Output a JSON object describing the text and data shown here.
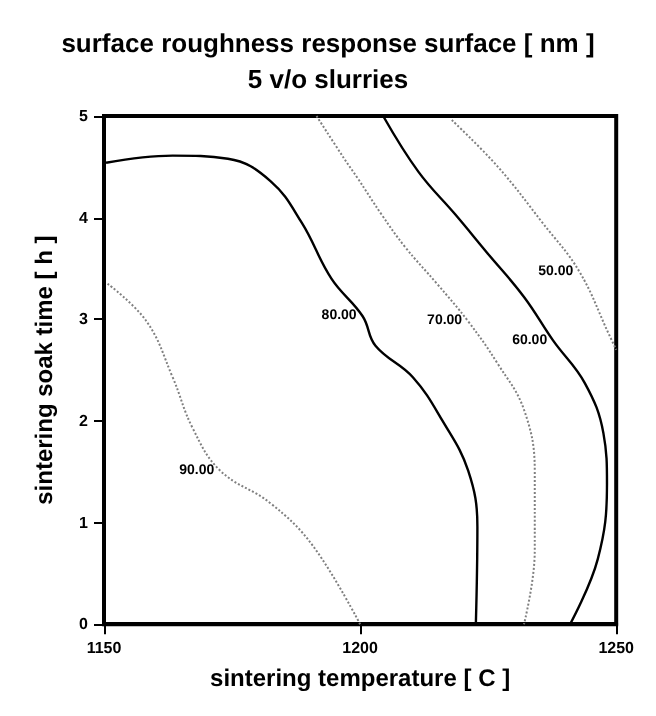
{
  "chart_data": {
    "type": "line",
    "title": "surface roughness response surface [ nm ]",
    "subtitle": "5 v/o slurries",
    "xlabel": "sintering temperature [ C ]",
    "ylabel": "sintering soak time [ h ]",
    "xlim": [
      1150,
      1250
    ],
    "xticks": [
      1150,
      1200,
      1250
    ],
    "ylim": [
      0,
      5
    ],
    "yticks": [
      0,
      1,
      2,
      3,
      4,
      5
    ],
    "grid": false,
    "legend": false,
    "marker": "none",
    "series": [
      {
        "name": "90.00",
        "color": "#808080",
        "line_style": "dotted",
        "x": [
          1150.7,
          1158.3,
          1163.4,
          1167.3,
          1172.7,
          1182.5,
          1190.8,
          1200
        ],
        "values": [
          3.35,
          2.98,
          2.43,
          1.93,
          1.51,
          1.19,
          0.77,
          0
        ]
      },
      {
        "name": "80.00",
        "color": "#000000",
        "line_style": "solid",
        "x": [
          1150.4,
          1163.4,
          1174.2,
          1182.5,
          1188.6,
          1194.4,
          1200.5,
          1203,
          1210.3,
          1216.1,
          1221.1,
          1222.9,
          1222.6
        ],
        "values": [
          4.54,
          4.61,
          4.58,
          4.36,
          3.95,
          3.4,
          3.03,
          2.74,
          2.43,
          2.0,
          1.51,
          0.96,
          0
        ]
      },
      {
        "name": "70.00",
        "color": "#808080",
        "line_style": "dotted",
        "x": [
          1191.5,
          1196.9,
          1199.5,
          1204.2,
          1208.8,
          1215,
          1221.1,
          1226.9,
          1232,
          1234.1,
          1234.1,
          1232
        ],
        "values": [
          5,
          4.58,
          4.39,
          4.03,
          3.71,
          3.35,
          2.98,
          2.56,
          2.11,
          1.51,
          0.72,
          0
        ]
      },
      {
        "name": "60.00",
        "color": "#000000",
        "line_style": "solid",
        "x": [
          1204.5,
          1211.4,
          1218.6,
          1224.7,
          1232,
          1237.7,
          1243.9,
          1247.5,
          1248.2,
          1246.4,
          1241
        ],
        "values": [
          5,
          4.45,
          4.03,
          3.66,
          3.22,
          2.79,
          2.37,
          1.88,
          1.38,
          0.64,
          0
        ]
      },
      {
        "name": "50.00",
        "color": "#808080",
        "line_style": "dotted",
        "x": [
          1217.9,
          1226.9,
          1235.6,
          1242.8,
          1248.6,
          1250
        ],
        "values": [
          4.96,
          4.5,
          3.95,
          3.47,
          2.85,
          2.7
        ]
      }
    ]
  }
}
